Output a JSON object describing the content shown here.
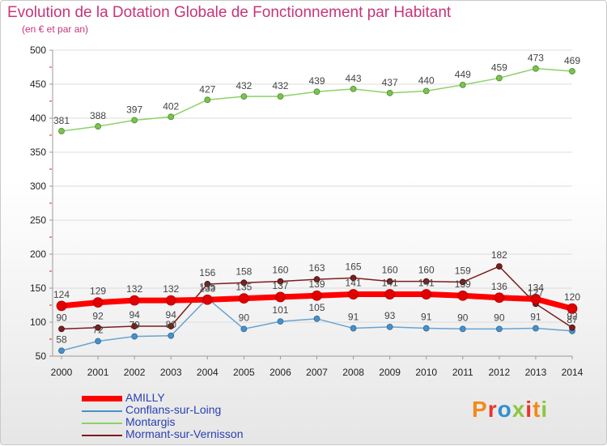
{
  "title": "Evolution de la Dotation Globale de Fonctionnement par Habitant",
  "subtitle": "(en € et par an)",
  "brand": "Proxiti",
  "brand_colors": [
    "#f28a1a",
    "#e5362c",
    "#2f8fd1",
    "#8cc63f",
    "#e5362c",
    "#f28a1a",
    "#8cc63f"
  ],
  "chart_data": {
    "type": "line",
    "x": [
      "2000",
      "2001",
      "2002",
      "2003",
      "2004",
      "2005",
      "2006",
      "2007",
      "2008",
      "2009",
      "2010",
      "2011",
      "2012",
      "2013",
      "2014"
    ],
    "ylim": [
      50,
      500
    ],
    "yticks": [
      "50",
      "100",
      "150",
      "200",
      "250",
      "300",
      "350",
      "400",
      "450",
      "500"
    ],
    "grid": "horizontal",
    "legend_placement": "bottom-left",
    "series": [
      {
        "name": "AMILLY",
        "color": "#ff0000",
        "values": [
          124,
          129,
          132,
          132,
          133,
          135,
          137,
          139,
          141,
          141,
          141,
          139,
          136,
          134,
          120
        ]
      },
      {
        "name": "Conflans-sur-Loing",
        "color": "#4a90c8",
        "values": [
          58,
          72,
          79,
          80,
          135,
          90,
          101,
          105,
          91,
          93,
          91,
          90,
          90,
          91,
          87
        ]
      },
      {
        "name": "Montargis",
        "color": "#8cd16a",
        "values": [
          381,
          388,
          397,
          402,
          427,
          432,
          432,
          439,
          443,
          437,
          440,
          449,
          459,
          473,
          469
        ]
      },
      {
        "name": "Mormant-sur-Vernisson",
        "color": "#7a1e1e",
        "values": [
          90,
          92,
          94,
          94,
          156,
          158,
          160,
          163,
          165,
          160,
          160,
          159,
          182,
          127,
          92
        ]
      }
    ]
  }
}
